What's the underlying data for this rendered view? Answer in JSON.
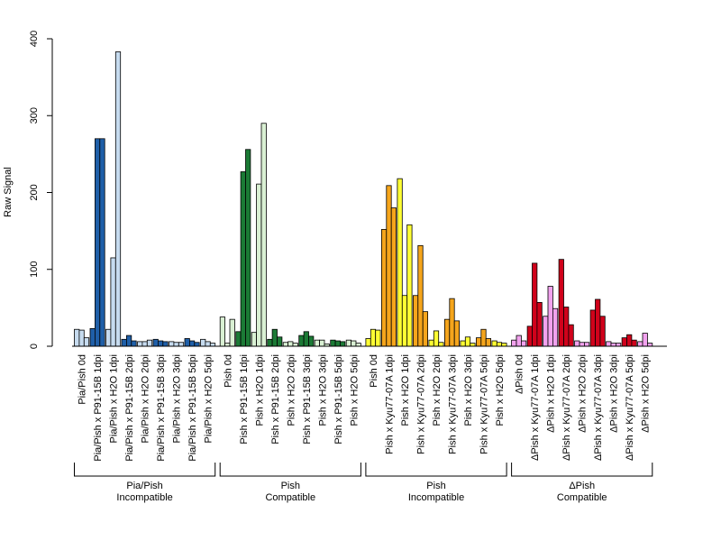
{
  "chart_data": {
    "type": "bar",
    "ylabel": "Raw Signal",
    "ylim": [
      0,
      400
    ],
    "yticks": [
      0,
      100,
      200,
      300,
      400
    ],
    "grid": false,
    "categories": [
      "Pia/Pish 0d",
      "Pia/Pish x P91-15B 1dpi",
      "Pia/Pish x H2O 1dpi",
      "Pia/Pish x P91-15B 2dpi",
      "Pia/Pish x H2O 2dpi",
      "Pia/Pish x P91-15B 3dpi",
      "Pia/Pish x H2O 3dpi",
      "Pia/Pish x P91-15B 5dpi",
      "Pia/Pish x H2O 5dpi",
      "Pish 0d",
      "Pish x P91-15B 1dpi",
      "Pish x H2O 1dpi",
      "Pish x P91-15B 2dpi",
      "Pish x H2O 2dpi",
      "Pish x P91-15B 3dpi",
      "Pish x H2O 3dpi",
      "Pish x P91-15B 5dpi",
      "Pish x H2O 5dpi",
      "Pish 0d",
      "Pish x Kyu77-07A 1dpi",
      "Pish x H2O 1dpi",
      "Pish x Kyu77-07A 2dpi",
      "Pish x H2O 2dpi",
      "Pish x Kyu77-07A 3dpi",
      "Pish x H2O 3dpi",
      "Pish x Kyu77-07A 5dpi",
      "Pish x H2O 5dpi",
      "ΔPish 0d",
      "ΔPish x Kyu77-07A 1dpi",
      "ΔPish x H2O 1dpi",
      "ΔPish x Kyu77-07A 2dpi",
      "ΔPish x H2O 2dpi",
      "ΔPish x Kyu77-07A 3dpi",
      "ΔPish x H2O 3dpi",
      "ΔPish x Kyu77-07A 5dpi",
      "ΔPish x H2O 5dpi"
    ],
    "replicate_values": [
      [
        22,
        21,
        11
      ],
      [
        23,
        270,
        270
      ],
      [
        22,
        115,
        383
      ],
      [
        9,
        14,
        7
      ],
      [
        6,
        6,
        8
      ],
      [
        9,
        7,
        6
      ],
      [
        6,
        5,
        5
      ],
      [
        10,
        7,
        5
      ],
      [
        9,
        6,
        4
      ],
      [
        38,
        4,
        35
      ],
      [
        19,
        227,
        256
      ],
      [
        18,
        211,
        290
      ],
      [
        9,
        22,
        12
      ],
      [
        5,
        6,
        4
      ],
      [
        14,
        19,
        13
      ],
      [
        8,
        8,
        3
      ],
      [
        8,
        7,
        6
      ],
      [
        8,
        7,
        4
      ],
      [
        10,
        22,
        21
      ],
      [
        152,
        209,
        180
      ],
      [
        218,
        66,
        158
      ],
      [
        66,
        131,
        45
      ],
      [
        8,
        20,
        5
      ],
      [
        35,
        62,
        33
      ],
      [
        7,
        12,
        4
      ],
      [
        11,
        22,
        10
      ],
      [
        7,
        5,
        4
      ],
      [
        8,
        14,
        7
      ],
      [
        26,
        108,
        57
      ],
      [
        39,
        78,
        49
      ],
      [
        113,
        51,
        28
      ],
      [
        7,
        5,
        5
      ],
      [
        47,
        61,
        39
      ],
      [
        6,
        4,
        4
      ],
      [
        11,
        15,
        8
      ],
      [
        6,
        17,
        4
      ]
    ],
    "bar_colors": [
      "#c6dbef",
      "#1f5fa8",
      "#c6dbef",
      "#1f5fa8",
      "#c6dbef",
      "#1f5fa8",
      "#c6dbef",
      "#1f5fa8",
      "#c6dbef",
      "#d9f0d3",
      "#1b7a35",
      "#d9f0d3",
      "#1b7a35",
      "#d9f0d3",
      "#1b7a35",
      "#d9f0d3",
      "#1b7a35",
      "#d9f0d3",
      "#ffff33",
      "#f5a51c",
      "#ffff33",
      "#f5a51c",
      "#ffff33",
      "#f5a51c",
      "#ffff33",
      "#f5a51c",
      "#ffff33",
      "#f2a2ee",
      "#d0021b",
      "#f2a2ee",
      "#d0021b",
      "#f2a2ee",
      "#d0021b",
      "#f2a2ee",
      "#d0021b",
      "#f2a2ee"
    ],
    "groups": [
      {
        "label_line1": "Pia/Pish",
        "label_line2": "Incompatible",
        "start": 0,
        "end": 8
      },
      {
        "label_line1": "Pish",
        "label_line2": "Compatible",
        "start": 9,
        "end": 17
      },
      {
        "label_line1": "Pish",
        "label_line2": "Incompatible",
        "start": 18,
        "end": 26
      },
      {
        "label_line1": "ΔPish",
        "label_line2": "Compatible",
        "start": 27,
        "end": 35
      }
    ]
  }
}
